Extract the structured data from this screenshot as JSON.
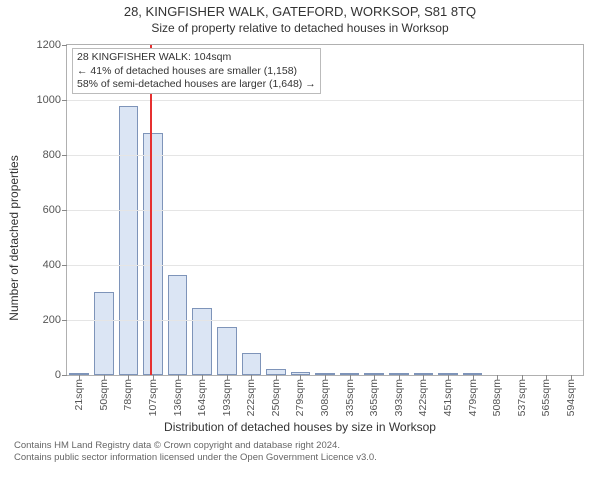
{
  "title": "28, KINGFISHER WALK, GATEFORD, WORKSOP, S81 8TQ",
  "subtitle": "Size of property relative to detached houses in Worksop",
  "ylabel": "Number of detached properties",
  "xlabel": "Distribution of detached houses by size in Worksop",
  "chart": {
    "type": "bar",
    "background_color": "#ffffff",
    "grid_color": "#e5e5e5",
    "axis_color": "#b0b0b0",
    "bar_fill": "#dbe5f4",
    "bar_border": "#7e94b9",
    "marker_color": "#e63030",
    "marker_x_value": 104,
    "ylim": [
      0,
      1200
    ],
    "ytick_step": 200,
    "tick_fontsize": 11,
    "label_fontsize": 12,
    "categories": [
      "21sqm",
      "50sqm",
      "78sqm",
      "107sqm",
      "136sqm",
      "164sqm",
      "193sqm",
      "222sqm",
      "250sqm",
      "279sqm",
      "308sqm",
      "335sqm",
      "365sqm",
      "393sqm",
      "422sqm",
      "451sqm",
      "479sqm",
      "508sqm",
      "537sqm",
      "565sqm",
      "594sqm"
    ],
    "values": [
      10,
      305,
      980,
      880,
      365,
      245,
      175,
      80,
      25,
      12,
      8,
      4,
      4,
      10,
      2,
      2,
      8,
      0,
      0,
      0,
      0
    ]
  },
  "annotation": {
    "line1": "28 KINGFISHER WALK: 104sqm",
    "line2": "← 41% of detached houses are smaller (1,158)",
    "line3": "58% of semi-detached houses are larger (1,648) →",
    "border_color": "#bbbbbb",
    "background": "#ffffff",
    "fontsize": 10.5
  },
  "footer": {
    "line1": "Contains HM Land Registry data © Crown copyright and database right 2024.",
    "line2": "Contains public sector information licensed under the Open Government Licence v3.0."
  }
}
